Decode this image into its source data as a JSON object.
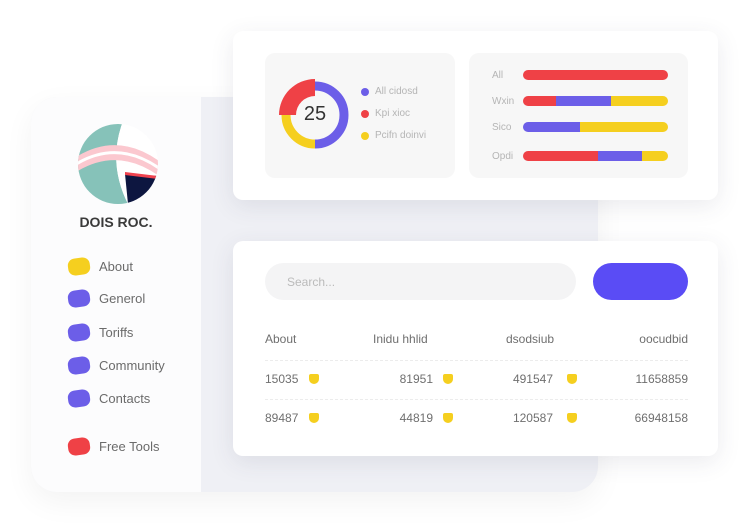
{
  "sidebar": {
    "brand": "DOIS ROC.",
    "items": [
      {
        "label": "About",
        "color": "#f5cf1f"
      },
      {
        "label": "Generol",
        "color": "#6c5ee8"
      },
      {
        "label": "Toriffs",
        "color": "#6c5ee8"
      },
      {
        "label": "Community",
        "color": "#6c5ee8"
      },
      {
        "label": "Contacts",
        "color": "#6c5ee8"
      },
      {
        "label": "Free Tools",
        "color": "#ef4146"
      }
    ]
  },
  "donut": {
    "value": "25",
    "legend": [
      {
        "label": "All cidosd",
        "color": "#6c5ee8"
      },
      {
        "label": "Kpi xioc",
        "color": "#ef4146"
      },
      {
        "label": "Pcifn doinvi",
        "color": "#f5cf1f"
      }
    ],
    "segments": [
      {
        "color": "#6c5ee8",
        "percent": 50
      },
      {
        "color": "#f5cf1f",
        "percent": 25
      },
      {
        "color": "#ef4146",
        "percent": 25
      }
    ]
  },
  "bars": [
    {
      "label": "All",
      "segments": [
        {
          "color": "#ef4146",
          "percent": 100
        }
      ]
    },
    {
      "label": "Wxin",
      "segments": [
        {
          "color": "#ef4146",
          "percent": 23
        },
        {
          "color": "#6c5ee8",
          "percent": 38
        },
        {
          "color": "#f5cf1f",
          "percent": 39
        }
      ]
    },
    {
      "label": "Sico",
      "segments": [
        {
          "color": "#6c5ee8",
          "percent": 39
        },
        {
          "color": "#f5cf1f",
          "percent": 61
        }
      ]
    },
    {
      "label": "Opdi",
      "segments": [
        {
          "color": "#ef4146",
          "percent": 52
        },
        {
          "color": "#6c5ee8",
          "percent": 30
        },
        {
          "color": "#f5cf1f",
          "percent": 18
        }
      ]
    }
  ],
  "search": {
    "placeholder": "Search..."
  },
  "table": {
    "headers": [
      "About",
      "Inidu hhlid",
      "dsodsiub",
      "oocudbid"
    ],
    "rows": [
      [
        "15035",
        "81951",
        "491547",
        "11658859"
      ],
      [
        "89487",
        "44819",
        "120587",
        "66948158"
      ]
    ]
  }
}
